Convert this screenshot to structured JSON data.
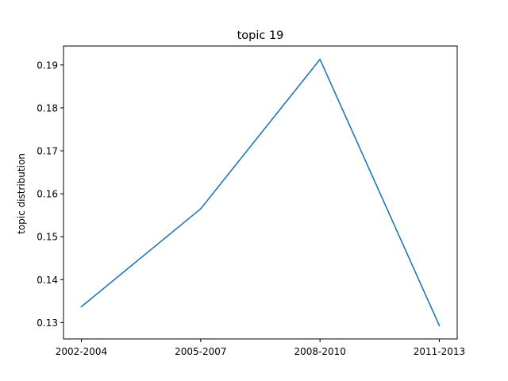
{
  "chart_data": {
    "type": "line",
    "title": "topic 19",
    "xlabel": "",
    "ylabel": "topic distribution",
    "categories": [
      "2002-2004",
      "2005-2007",
      "2008-2010",
      "2011-2013"
    ],
    "series": [
      {
        "values": [
          0.1337,
          0.1565,
          0.1913,
          0.1293
        ],
        "color": "#1f77b4"
      }
    ],
    "ylim": [
      0.1262,
      0.1944
    ],
    "yticks": [
      0.13,
      0.14,
      0.15,
      0.16,
      0.17,
      0.18,
      0.19
    ],
    "ytick_labels": [
      "0.13",
      "0.14",
      "0.15",
      "0.16",
      "0.17",
      "0.18",
      "0.19"
    ],
    "grid": false,
    "legend": "none"
  }
}
